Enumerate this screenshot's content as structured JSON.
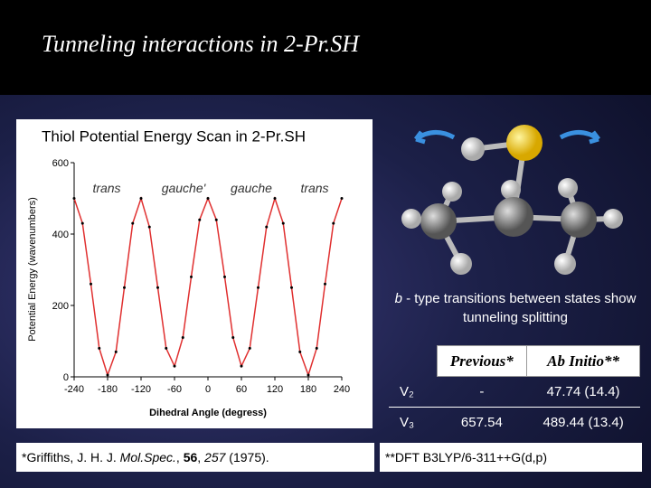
{
  "header": {
    "title": "Tunneling interactions in 2-Pr.SH"
  },
  "chart_data": {
    "type": "line",
    "title": "Thiol Potential Energy Scan in 2-Pr.SH",
    "x_label": "Dihedral Angle (degress)",
    "y_label": "Potential Energy (wavenumbers)",
    "annotations": [
      "trans",
      "gauche'",
      "gauche",
      "trans"
    ],
    "x": [
      -240,
      -225,
      -210,
      -195,
      -180,
      -165,
      -150,
      -135,
      -120,
      -105,
      -90,
      -75,
      -60,
      -45,
      -30,
      -15,
      0,
      15,
      30,
      45,
      60,
      75,
      90,
      105,
      120,
      135,
      150,
      165,
      180,
      195,
      210,
      225,
      240
    ],
    "series": [
      {
        "color": "#e03030",
        "values": [
          500,
          430,
          260,
          80,
          5,
          70,
          250,
          430,
          500,
          420,
          250,
          80,
          30,
          110,
          280,
          440,
          500,
          440,
          280,
          110,
          30,
          80,
          250,
          420,
          500,
          430,
          250,
          70,
          5,
          80,
          260,
          430,
          500
        ]
      }
    ],
    "xlim": [
      -240,
      240
    ],
    "xticks": [
      -240,
      -180,
      -120,
      -60,
      0,
      60,
      120,
      180,
      240
    ],
    "ylim": [
      0,
      600
    ],
    "yticks": [
      0,
      200,
      400,
      600
    ],
    "grid": false
  },
  "caption": {
    "parts": [
      "b",
      " - type transitions between states show tunneling splitting"
    ]
  },
  "table": {
    "columns": [
      "Previous*",
      "Ab Initio**"
    ],
    "rows": [
      [
        "V₂",
        "-",
        "47.74 (14.4)"
      ],
      [
        "V₃",
        "657.54",
        "489.44 (13.4)"
      ]
    ]
  },
  "footnote_left": {
    "parts": [
      "*Griffiths, J. H. J. ",
      "Mol.Spec.",
      ", ",
      "56",
      ", ",
      "257",
      " (1975)."
    ]
  },
  "footnote_right": "**DFT B3LYP/6-311++G(d,p)"
}
